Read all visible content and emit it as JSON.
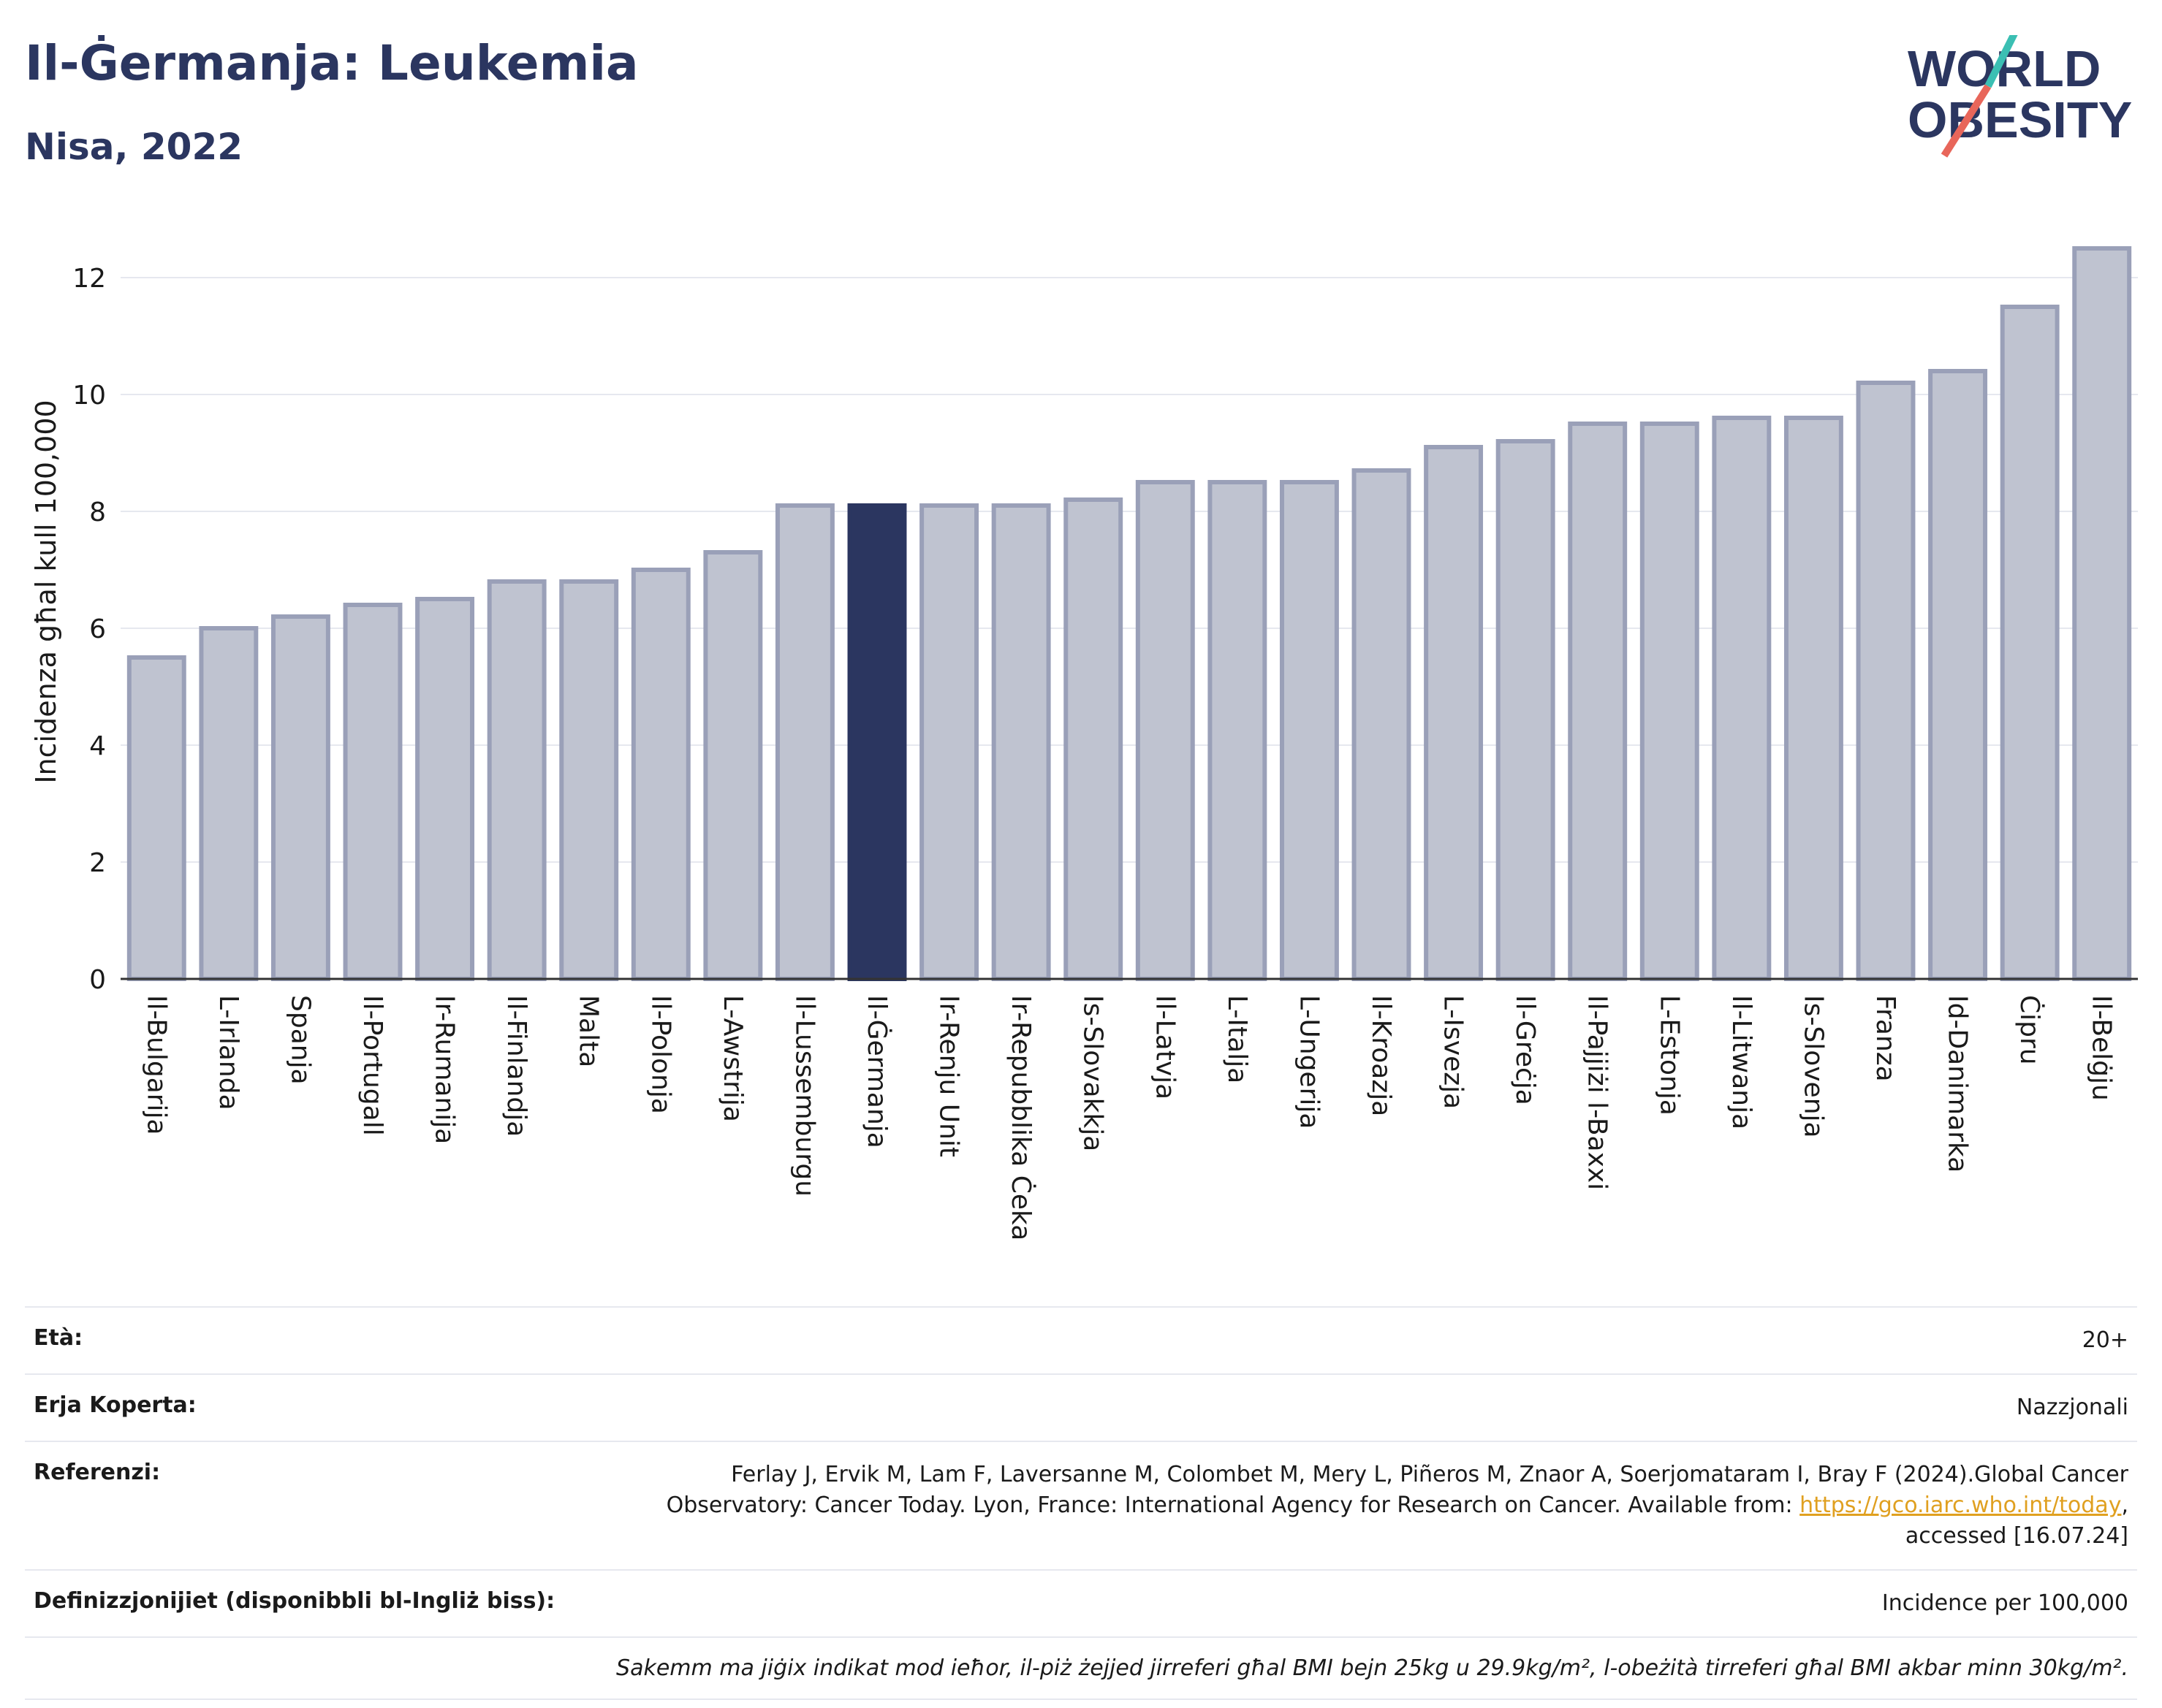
{
  "header": {
    "title": "Il-Ġermanja: Leukemia",
    "subtitle": "Nisa, 2022"
  },
  "logo": {
    "line1": "WORLD",
    "line2": "OBESITY"
  },
  "chart_data": {
    "type": "bar",
    "title": "",
    "xlabel": "",
    "ylabel": "Incidenza għal kull 100,000",
    "ylim": [
      0,
      13
    ],
    "yticks": [
      0,
      2,
      4,
      6,
      8,
      10,
      12
    ],
    "grid": true,
    "highlight": "Il-Ġermanja",
    "colors": {
      "bar": "#bfc3d0",
      "bar_edge": "#9aa0b8",
      "highlight": "#2b3660"
    },
    "categories": [
      "Il-Bulgarija",
      "L-Irlanda",
      "Spanja",
      "Il-Portugall",
      "Ir-Rumanija",
      "Il-Finlandja",
      "Malta",
      "Il-Polonja",
      "L-Awstrija",
      "Il-Lussemburgu",
      "Il-Ġermanja",
      "Ir-Renju Unit",
      "Ir-Repubblika Ċeka",
      "Is-Slovakkja",
      "Il-Latvja",
      "L-Italja",
      "L-Ungerija",
      "Il-Kroazja",
      "L-Isvezja",
      "Il-Greċja",
      "Il-Pajjiżi l-Baxxi",
      "L-Estonja",
      "Il-Litwanja",
      "Is-Slovenja",
      "Franza",
      "Id-Danimarka",
      "Ċipru",
      "Il-Belġju"
    ],
    "values": [
      5.5,
      6.0,
      6.2,
      6.4,
      6.5,
      6.8,
      6.8,
      7.0,
      7.3,
      8.1,
      8.1,
      8.1,
      8.1,
      8.2,
      8.5,
      8.5,
      8.5,
      8.7,
      9.1,
      9.2,
      9.5,
      9.5,
      9.6,
      9.6,
      10.2,
      10.4,
      11.5,
      12.5
    ]
  },
  "info": {
    "age_label": "Età:",
    "age_value": "20+",
    "area_label": "Erja Koperta:",
    "area_value": "Nazzjonali",
    "ref_label": "Referenzi:",
    "ref_text1": "Ferlay J, Ervik M, Lam F, Laversanne M, Colombet M, Mery L, Piñeros M, Znaor A, Soerjomataram I, Bray F (2024).Global Cancer Observatory: Cancer Today. Lyon, France: International Agency for Research on Cancer. Available from: ",
    "ref_link": "https://gco.iarc.who.int/today",
    "ref_text2": ", accessed [16.07.24]",
    "def_label": "Definizzjonijiet (disponibbli bl-Ingliż biss):",
    "def_value": "Incidence per 100,000",
    "note": "Sakemm ma jiġix indikat mod ieħor, il-piż żejjed jirreferi għal BMI bejn 25kg u 29.9kg/m², l-obeżità tirreferi għal BMI akbar minn 30kg/m²."
  }
}
